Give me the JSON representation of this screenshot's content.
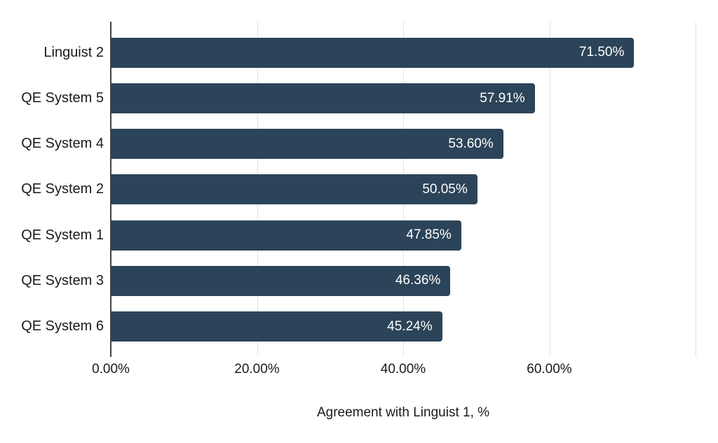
{
  "chart_data": {
    "type": "bar",
    "orientation": "horizontal",
    "title": "",
    "categories": [
      "Linguist 2",
      "QE System 5",
      "QE System 4",
      "QE System 2",
      "QE System 1",
      "QE System 3",
      "QE System 6"
    ],
    "values": [
      71.5,
      57.91,
      53.6,
      50.05,
      47.85,
      46.36,
      45.24
    ],
    "value_labels": [
      "71.50%",
      "57.91%",
      "53.60%",
      "50.05%",
      "47.85%",
      "46.36%",
      "45.24%"
    ],
    "xlabel": "Agreement with Linguist 1, %",
    "ylabel": "",
    "xlim": [
      0,
      80
    ],
    "x_ticks": [
      {
        "value": 0,
        "label": "0.00%"
      },
      {
        "value": 20,
        "label": "20.00%"
      },
      {
        "value": 40,
        "label": "40.00%"
      },
      {
        "value": 60,
        "label": "60.00%"
      }
    ],
    "gridline_values": [
      20,
      40,
      60,
      80
    ],
    "grid": true,
    "legend": false,
    "colors": {
      "bar": "#2c4459",
      "value_label": "#ffffff",
      "category_label": "#1a1a1a",
      "tick_label": "#1a1a1a",
      "axis_title": "#1a1a1a",
      "gridline": "#e2e2e2",
      "axis_line": "#424242",
      "background": "#ffffff"
    }
  }
}
